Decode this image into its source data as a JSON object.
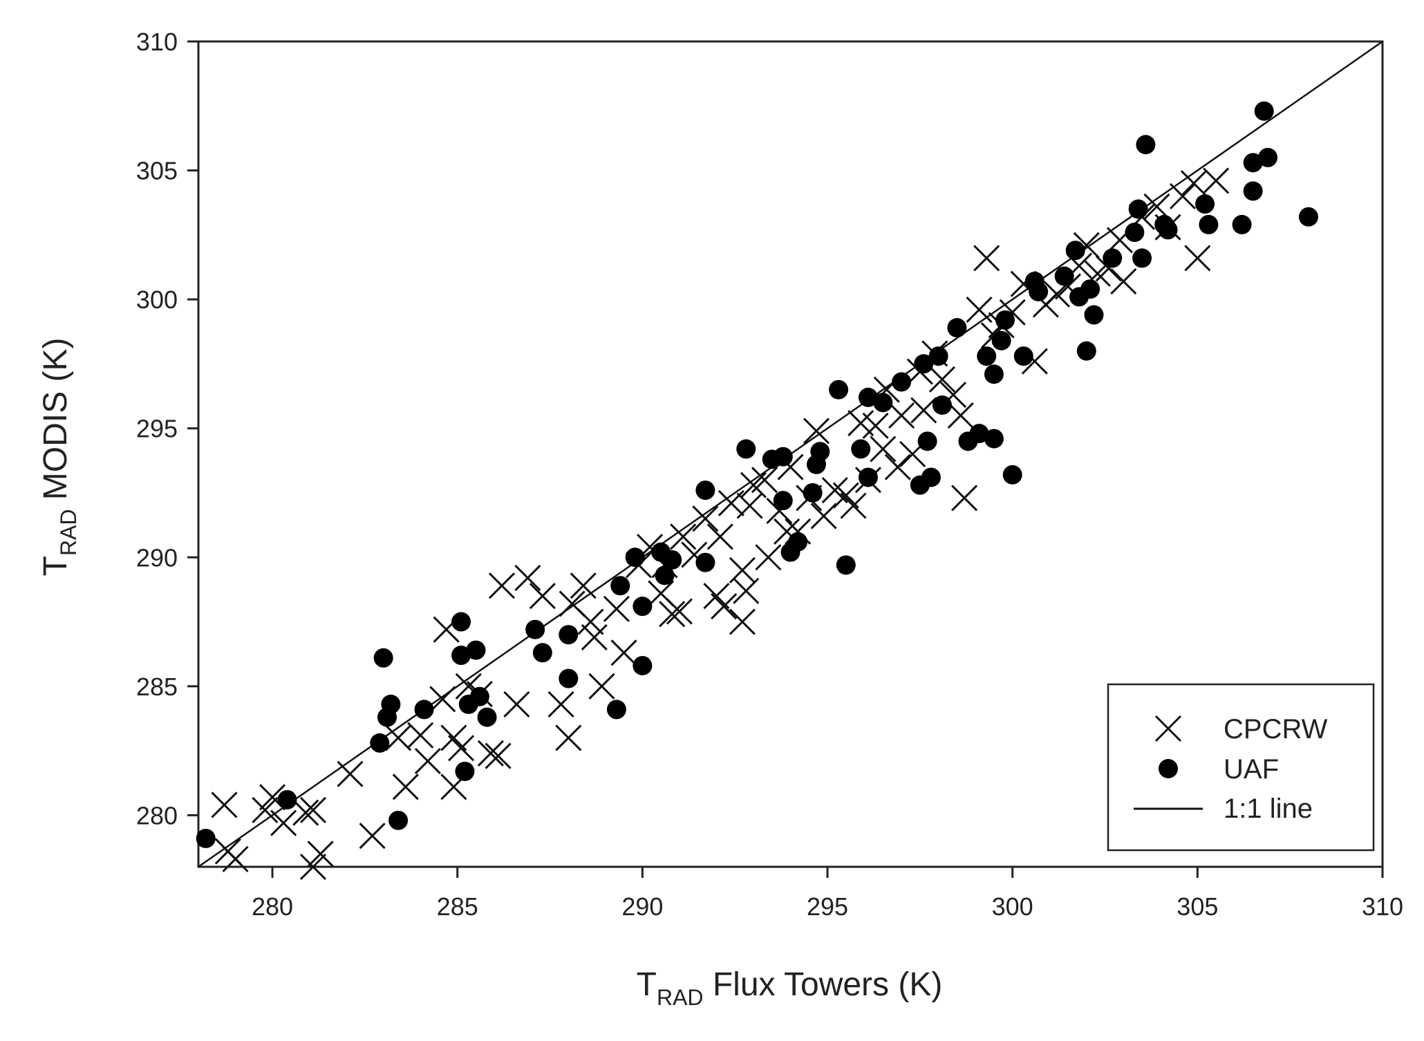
{
  "chart_data": {
    "type": "scatter",
    "title": "",
    "xlabel": {
      "main": "T",
      "sub": "RAD",
      "rest": " Flux Towers (K)"
    },
    "ylabel": {
      "main": "T",
      "sub": "RAD",
      "rest": " MODIS (K)"
    },
    "xlim": [
      278,
      310
    ],
    "ylim": [
      278,
      310
    ],
    "xticks": [
      280,
      285,
      290,
      295,
      300,
      305,
      310
    ],
    "yticks": [
      280,
      285,
      290,
      295,
      300,
      305,
      310
    ],
    "xtick_labels": [
      "280",
      "285",
      "290",
      "295",
      "300",
      "305",
      "310"
    ],
    "ytick_labels": [
      "280",
      "285",
      "290",
      "295",
      "300",
      "305",
      "310"
    ],
    "grid": false,
    "legend_position": "bottom-right",
    "colors": {
      "marks": "#000000",
      "axes": "#222222"
    },
    "series": [
      {
        "name": "CPCRW",
        "marker": "x",
        "points": [
          [
            278.7,
            280.4
          ],
          [
            278.8,
            278.6
          ],
          [
            279.0,
            278.3
          ],
          [
            279.8,
            280.2
          ],
          [
            280.0,
            280.7
          ],
          [
            280.3,
            279.7
          ],
          [
            280.9,
            280.1
          ],
          [
            281.1,
            280.2
          ],
          [
            281.1,
            278.0
          ],
          [
            281.3,
            278.5
          ],
          [
            282.1,
            281.6
          ],
          [
            282.7,
            279.2
          ],
          [
            283.4,
            283.0
          ],
          [
            283.6,
            281.1
          ],
          [
            284.0,
            283.1
          ],
          [
            284.2,
            282.1
          ],
          [
            284.6,
            284.5
          ],
          [
            284.7,
            287.2
          ],
          [
            284.9,
            281.1
          ],
          [
            284.9,
            283.0
          ],
          [
            285.1,
            282.6
          ],
          [
            285.3,
            285.0
          ],
          [
            285.6,
            284.7
          ],
          [
            285.9,
            282.4
          ],
          [
            286.1,
            282.3
          ],
          [
            286.2,
            288.9
          ],
          [
            286.6,
            284.3
          ],
          [
            286.9,
            289.2
          ],
          [
            287.3,
            288.5
          ],
          [
            287.8,
            284.3
          ],
          [
            288.0,
            283.0
          ],
          [
            288.1,
            288.2
          ],
          [
            288.4,
            288.9
          ],
          [
            288.6,
            287.5
          ],
          [
            288.7,
            286.9
          ],
          [
            288.9,
            285.0
          ],
          [
            289.3,
            288.0
          ],
          [
            289.5,
            286.3
          ],
          [
            289.9,
            289.7
          ],
          [
            290.2,
            290.4
          ],
          [
            290.5,
            288.6
          ],
          [
            290.6,
            289.7
          ],
          [
            290.8,
            287.8
          ],
          [
            291.0,
            287.9
          ],
          [
            291.1,
            290.8
          ],
          [
            291.4,
            290.1
          ],
          [
            291.7,
            291.5
          ],
          [
            292.0,
            288.5
          ],
          [
            292.1,
            290.8
          ],
          [
            292.2,
            288.1
          ],
          [
            292.4,
            292.1
          ],
          [
            292.7,
            289.5
          ],
          [
            292.7,
            287.5
          ],
          [
            292.8,
            288.7
          ],
          [
            292.9,
            292.0
          ],
          [
            293.0,
            292.8
          ],
          [
            293.3,
            293.0
          ],
          [
            293.4,
            290.0
          ],
          [
            293.7,
            291.8
          ],
          [
            293.9,
            291.0
          ],
          [
            294.0,
            293.5
          ],
          [
            294.2,
            291.0
          ],
          [
            294.5,
            292.3
          ],
          [
            294.7,
            294.9
          ],
          [
            294.9,
            291.6
          ],
          [
            295.2,
            292.6
          ],
          [
            295.5,
            292.4
          ],
          [
            295.7,
            292.0
          ],
          [
            295.9,
            295.2
          ],
          [
            296.1,
            293.0
          ],
          [
            296.3,
            295.1
          ],
          [
            296.5,
            294.2
          ],
          [
            296.6,
            296.5
          ],
          [
            296.9,
            293.5
          ],
          [
            297.0,
            295.5
          ],
          [
            297.3,
            294.0
          ],
          [
            297.5,
            297.2
          ],
          [
            297.6,
            295.7
          ],
          [
            297.9,
            297.9
          ],
          [
            298.1,
            296.9
          ],
          [
            298.4,
            296.3
          ],
          [
            298.6,
            295.5
          ],
          [
            298.7,
            292.3
          ],
          [
            299.1,
            299.6
          ],
          [
            299.3,
            301.6
          ],
          [
            299.5,
            298.6
          ],
          [
            299.7,
            299.0
          ],
          [
            300.0,
            299.5
          ],
          [
            300.3,
            300.6
          ],
          [
            300.6,
            297.6
          ],
          [
            300.9,
            299.8
          ],
          [
            301.2,
            300.2
          ],
          [
            301.5,
            300.5
          ],
          [
            301.8,
            301.3
          ],
          [
            302.0,
            302.1
          ],
          [
            302.3,
            301.0
          ],
          [
            302.6,
            301.2
          ],
          [
            302.9,
            302.3
          ],
          [
            303.0,
            300.7
          ],
          [
            303.5,
            303.2
          ],
          [
            303.9,
            303.6
          ],
          [
            304.2,
            302.8
          ],
          [
            304.6,
            304.0
          ],
          [
            304.9,
            304.5
          ],
          [
            305.0,
            301.6
          ],
          [
            305.5,
            304.6
          ]
        ]
      },
      {
        "name": "UAF",
        "marker": "filled-circle",
        "points": [
          [
            278.2,
            279.1
          ],
          [
            280.4,
            280.6
          ],
          [
            282.9,
            282.8
          ],
          [
            283.0,
            286.1
          ],
          [
            283.1,
            283.8
          ],
          [
            283.2,
            284.3
          ],
          [
            283.4,
            279.8
          ],
          [
            284.1,
            284.1
          ],
          [
            285.1,
            287.5
          ],
          [
            285.1,
            286.2
          ],
          [
            285.2,
            281.7
          ],
          [
            285.3,
            284.3
          ],
          [
            285.5,
            286.4
          ],
          [
            285.6,
            284.6
          ],
          [
            285.8,
            283.8
          ],
          [
            287.1,
            287.2
          ],
          [
            287.3,
            286.3
          ],
          [
            288.0,
            287.0
          ],
          [
            288.0,
            285.3
          ],
          [
            289.3,
            284.1
          ],
          [
            289.4,
            288.9
          ],
          [
            289.8,
            290.0
          ],
          [
            290.0,
            285.8
          ],
          [
            290.0,
            288.1
          ],
          [
            290.5,
            290.2
          ],
          [
            290.6,
            289.3
          ],
          [
            290.8,
            289.9
          ],
          [
            291.7,
            292.6
          ],
          [
            291.7,
            289.8
          ],
          [
            292.8,
            294.2
          ],
          [
            293.5,
            293.8
          ],
          [
            293.8,
            293.9
          ],
          [
            293.8,
            292.2
          ],
          [
            294.0,
            290.2
          ],
          [
            294.2,
            290.6
          ],
          [
            294.6,
            292.5
          ],
          [
            294.7,
            293.6
          ],
          [
            294.8,
            294.1
          ],
          [
            295.3,
            296.5
          ],
          [
            295.5,
            289.7
          ],
          [
            295.9,
            294.2
          ],
          [
            296.1,
            296.2
          ],
          [
            296.1,
            293.1
          ],
          [
            296.5,
            296.0
          ],
          [
            297.0,
            296.8
          ],
          [
            297.5,
            292.8
          ],
          [
            297.6,
            297.5
          ],
          [
            297.7,
            294.5
          ],
          [
            297.8,
            293.1
          ],
          [
            298.0,
            297.8
          ],
          [
            298.1,
            295.9
          ],
          [
            298.5,
            298.9
          ],
          [
            298.8,
            294.5
          ],
          [
            299.1,
            294.8
          ],
          [
            299.3,
            297.8
          ],
          [
            299.5,
            297.1
          ],
          [
            299.5,
            294.6
          ],
          [
            299.7,
            298.4
          ],
          [
            299.8,
            299.2
          ],
          [
            300.0,
            293.2
          ],
          [
            300.3,
            297.8
          ],
          [
            300.6,
            300.7
          ],
          [
            300.7,
            300.3
          ],
          [
            301.4,
            300.9
          ],
          [
            301.7,
            301.9
          ],
          [
            301.8,
            300.1
          ],
          [
            302.0,
            298.0
          ],
          [
            302.1,
            300.4
          ],
          [
            302.2,
            299.4
          ],
          [
            302.7,
            301.6
          ],
          [
            303.3,
            302.6
          ],
          [
            303.4,
            303.5
          ],
          [
            303.6,
            306.0
          ],
          [
            303.5,
            301.6
          ],
          [
            304.1,
            302.9
          ],
          [
            304.2,
            302.7
          ],
          [
            305.2,
            303.7
          ],
          [
            305.3,
            302.9
          ],
          [
            306.2,
            302.9
          ],
          [
            306.5,
            305.3
          ],
          [
            306.5,
            304.2
          ],
          [
            306.8,
            307.3
          ],
          [
            306.9,
            305.5
          ],
          [
            308.0,
            303.2
          ]
        ]
      },
      {
        "name": "1:1 line",
        "marker": "line",
        "points": [
          [
            278,
            278
          ],
          [
            310,
            310
          ]
        ]
      }
    ]
  }
}
